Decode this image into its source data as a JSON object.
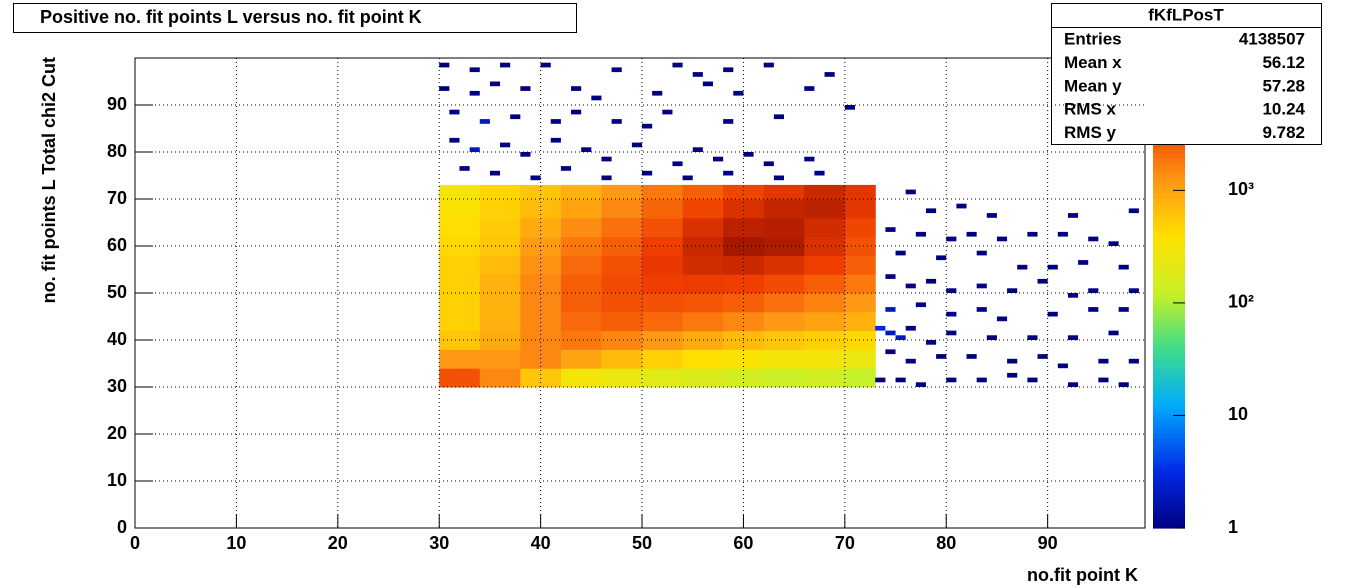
{
  "chart_data": {
    "type": "heatmap2d",
    "title": "Positive no. fit points L versus no. fit point K",
    "x_label": "no.fit point K",
    "y_label": "no. fit points  L   Total chi2 Cut",
    "xlim": [
      0,
      99.6
    ],
    "ylim": [
      0,
      100
    ],
    "xticks": [
      0,
      10,
      20,
      30,
      40,
      50,
      60,
      70,
      80,
      90
    ],
    "yticks": [
      0,
      10,
      20,
      30,
      40,
      50,
      60,
      70,
      80,
      90
    ],
    "grid": true,
    "log_z": true,
    "zlim": [
      1,
      15000
    ],
    "zticks": [
      1,
      10,
      {
        "value": 100,
        "label": "10²"
      },
      {
        "value": 1000,
        "label": "10³"
      }
    ],
    "x_edges": [
      30,
      34,
      38,
      42,
      46,
      50,
      54,
      58,
      62,
      66,
      70,
      73
    ],
    "y_edges": [
      30,
      34,
      38,
      42,
      46,
      50,
      54,
      58,
      62,
      66,
      70,
      73
    ],
    "z": [
      [
        3000,
        1500,
        600,
        300,
        250,
        200,
        180,
        150,
        130,
        150,
        120
      ],
      [
        1200,
        1200,
        1500,
        1000,
        700,
        500,
        400,
        350,
        300,
        300,
        250
      ],
      [
        600,
        900,
        1500,
        1800,
        1500,
        1200,
        900,
        700,
        600,
        500,
        450
      ],
      [
        500,
        800,
        1500,
        2200,
        2500,
        2200,
        1800,
        1500,
        1200,
        1000,
        800
      ],
      [
        500,
        800,
        1500,
        2500,
        3000,
        3000,
        2800,
        2500,
        2000,
        1600,
        1200
      ],
      [
        500,
        800,
        1500,
        2500,
        3200,
        3800,
        4000,
        3800,
        3200,
        2500,
        1800
      ],
      [
        500,
        700,
        1300,
        2200,
        3000,
        4200,
        5500,
        6000,
        5000,
        3800,
        2500
      ],
      [
        450,
        600,
        1100,
        1800,
        2500,
        3800,
        6000,
        9000,
        8000,
        5000,
        3000
      ],
      [
        400,
        550,
        900,
        1400,
        2000,
        3000,
        5000,
        7000,
        7500,
        5500,
        3500
      ],
      [
        350,
        500,
        700,
        1000,
        1500,
        2300,
        3500,
        5000,
        6500,
        7000,
        4500
      ],
      [
        300,
        450,
        600,
        800,
        1200,
        1800,
        2500,
        3500,
        4500,
        6000,
        4500
      ]
    ],
    "sparse": [
      [
        30,
        98,
        1
      ],
      [
        33,
        97,
        1
      ],
      [
        36,
        98,
        1
      ],
      [
        40,
        98,
        1
      ],
      [
        47,
        97,
        1
      ],
      [
        53,
        98,
        1
      ],
      [
        55,
        96,
        1
      ],
      [
        58,
        97,
        1
      ],
      [
        62,
        98,
        1
      ],
      [
        68,
        96,
        1
      ],
      [
        30,
        93,
        1
      ],
      [
        33,
        92,
        1
      ],
      [
        35,
        94,
        1
      ],
      [
        38,
        93,
        1
      ],
      [
        43,
        93,
        1
      ],
      [
        45,
        91,
        1
      ],
      [
        51,
        92,
        1
      ],
      [
        56,
        94,
        1
      ],
      [
        59,
        92,
        1
      ],
      [
        66,
        93,
        1
      ],
      [
        70,
        89,
        1
      ],
      [
        31,
        88,
        1
      ],
      [
        34,
        86,
        2
      ],
      [
        37,
        87,
        1
      ],
      [
        41,
        86,
        1
      ],
      [
        43,
        88,
        1
      ],
      [
        47,
        86,
        1
      ],
      [
        50,
        85,
        1
      ],
      [
        52,
        88,
        1
      ],
      [
        58,
        86,
        1
      ],
      [
        63,
        87,
        1
      ],
      [
        31,
        82,
        1
      ],
      [
        33,
        80,
        2
      ],
      [
        36,
        81,
        1
      ],
      [
        38,
        79,
        1
      ],
      [
        41,
        82,
        1
      ],
      [
        44,
        80,
        1
      ],
      [
        46,
        78,
        1
      ],
      [
        49,
        81,
        1
      ],
      [
        53,
        77,
        1
      ],
      [
        55,
        80,
        1
      ],
      [
        57,
        78,
        1
      ],
      [
        60,
        79,
        1
      ],
      [
        62,
        77,
        1
      ],
      [
        66,
        78,
        1
      ],
      [
        32,
        76,
        1
      ],
      [
        35,
        75,
        1
      ],
      [
        39,
        74,
        1
      ],
      [
        42,
        76,
        1
      ],
      [
        46,
        74,
        1
      ],
      [
        50,
        75,
        1
      ],
      [
        54,
        74,
        1
      ],
      [
        58,
        75,
        1
      ],
      [
        63,
        74,
        1
      ],
      [
        67,
        75,
        1
      ],
      [
        76,
        71,
        1
      ],
      [
        78,
        67,
        1
      ],
      [
        81,
        68,
        1
      ],
      [
        84,
        66,
        1
      ],
      [
        92,
        66,
        1
      ],
      [
        98,
        67,
        1
      ],
      [
        74,
        63,
        1
      ],
      [
        77,
        62,
        1
      ],
      [
        80,
        61,
        1
      ],
      [
        82,
        62,
        1
      ],
      [
        85,
        61,
        1
      ],
      [
        88,
        62,
        1
      ],
      [
        91,
        62,
        1
      ],
      [
        94,
        61,
        1
      ],
      [
        96,
        60,
        1
      ],
      [
        75,
        58,
        1
      ],
      [
        79,
        57,
        1
      ],
      [
        83,
        58,
        1
      ],
      [
        87,
        55,
        1
      ],
      [
        90,
        55,
        1
      ],
      [
        93,
        56,
        1
      ],
      [
        97,
        55,
        1
      ],
      [
        74,
        53,
        1
      ],
      [
        76,
        51,
        1
      ],
      [
        78,
        52,
        1
      ],
      [
        80,
        50,
        1
      ],
      [
        83,
        51,
        1
      ],
      [
        86,
        50,
        1
      ],
      [
        89,
        52,
        1
      ],
      [
        92,
        49,
        1
      ],
      [
        94,
        50,
        1
      ],
      [
        98,
        50,
        1
      ],
      [
        74,
        46,
        2
      ],
      [
        77,
        47,
        1
      ],
      [
        80,
        45,
        1
      ],
      [
        83,
        46,
        1
      ],
      [
        85,
        44,
        1
      ],
      [
        90,
        45,
        1
      ],
      [
        94,
        46,
        1
      ],
      [
        97,
        46,
        1
      ],
      [
        73,
        42,
        3
      ],
      [
        74,
        41,
        2
      ],
      [
        75,
        40,
        2
      ],
      [
        76,
        42,
        1
      ],
      [
        78,
        39,
        1
      ],
      [
        80,
        41,
        1
      ],
      [
        84,
        40,
        1
      ],
      [
        88,
        40,
        1
      ],
      [
        92,
        40,
        1
      ],
      [
        96,
        41,
        1
      ],
      [
        74,
        37,
        1
      ],
      [
        76,
        35,
        1
      ],
      [
        79,
        36,
        1
      ],
      [
        82,
        36,
        1
      ],
      [
        86,
        35,
        1
      ],
      [
        89,
        36,
        1
      ],
      [
        91,
        34,
        1
      ],
      [
        95,
        35,
        1
      ],
      [
        98,
        35,
        1
      ],
      [
        73,
        31,
        1
      ],
      [
        75,
        31,
        1
      ],
      [
        77,
        30,
        1
      ],
      [
        80,
        31,
        1
      ],
      [
        83,
        31,
        1
      ],
      [
        86,
        32,
        1
      ],
      [
        88,
        31,
        1
      ],
      [
        92,
        30,
        1
      ],
      [
        95,
        31,
        1
      ],
      [
        97,
        30,
        1
      ]
    ],
    "stats": {
      "title": "fKfLPosT",
      "rows": [
        [
          "Entries",
          "4138507"
        ],
        [
          "Mean x",
          "56.12"
        ],
        [
          "Mean y",
          "57.28"
        ],
        [
          "RMS x",
          "10.24"
        ],
        [
          "RMS y",
          "9.782"
        ]
      ]
    }
  }
}
